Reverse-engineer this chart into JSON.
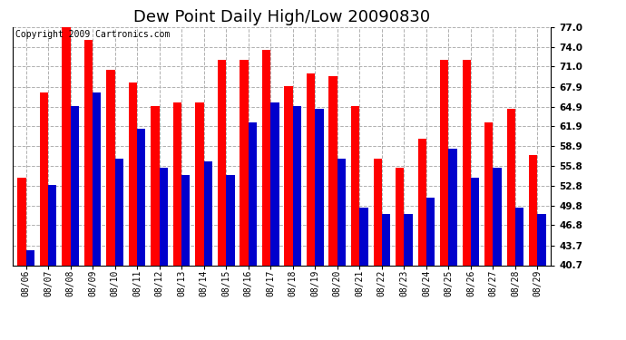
{
  "title": "Dew Point Daily High/Low 20090830",
  "copyright": "Copyright 2009 Cartronics.com",
  "dates": [
    "08/06",
    "08/07",
    "08/08",
    "08/09",
    "08/10",
    "08/11",
    "08/12",
    "08/13",
    "08/14",
    "08/15",
    "08/16",
    "08/17",
    "08/18",
    "08/19",
    "08/20",
    "08/21",
    "08/22",
    "08/23",
    "08/24",
    "08/25",
    "08/26",
    "08/27",
    "08/28",
    "08/29"
  ],
  "highs": [
    54.0,
    67.0,
    77.0,
    75.0,
    70.5,
    68.5,
    65.0,
    65.5,
    65.5,
    72.0,
    72.0,
    73.5,
    68.0,
    70.0,
    69.5,
    65.0,
    57.0,
    55.5,
    60.0,
    72.0,
    72.0,
    62.5,
    64.5,
    57.5
  ],
  "lows": [
    43.0,
    53.0,
    65.0,
    67.0,
    57.0,
    61.5,
    55.5,
    54.5,
    56.5,
    54.5,
    62.5,
    65.5,
    65.0,
    64.5,
    57.0,
    49.5,
    48.5,
    48.5,
    51.0,
    58.5,
    54.0,
    55.5,
    49.5,
    48.5
  ],
  "high_color": "#ff0000",
  "low_color": "#0000cc",
  "bg_color": "#ffffff",
  "grid_color": "#b0b0b0",
  "ymin": 40.7,
  "ymax": 77.0,
  "yticks": [
    40.7,
    43.7,
    46.8,
    49.8,
    52.8,
    55.8,
    58.9,
    61.9,
    64.9,
    67.9,
    71.0,
    74.0,
    77.0
  ],
  "title_fontsize": 13,
  "copyright_fontsize": 7,
  "bar_width": 0.38
}
